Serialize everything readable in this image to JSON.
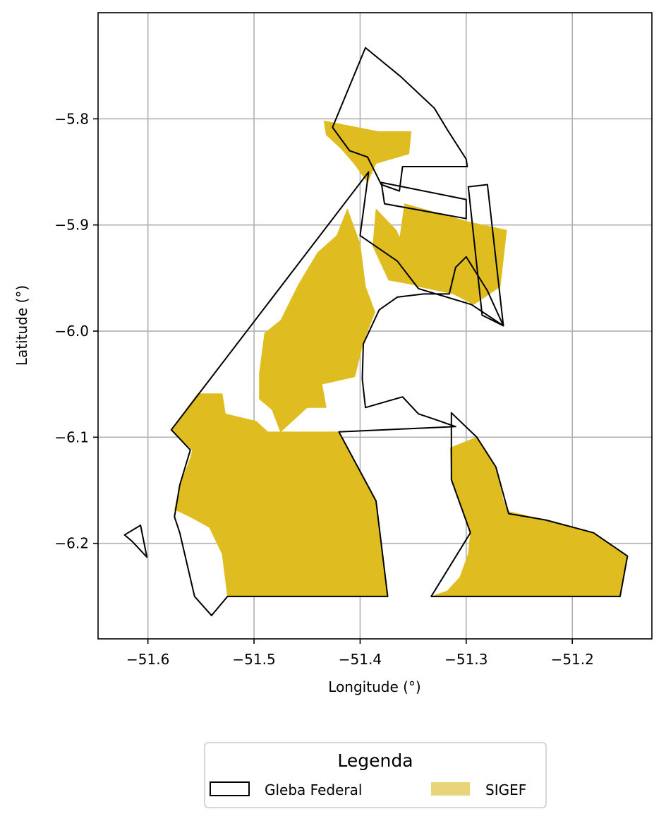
{
  "chart_data": {
    "type": "map",
    "xlabel": "Longitude (°)",
    "ylabel": "Latitude (°)",
    "xlim": [
      -51.647,
      -51.125
    ],
    "ylim": [
      -6.29,
      -5.7
    ],
    "grid": true,
    "x_ticks": [
      {
        "value": -51.6,
        "label": "−51.6"
      },
      {
        "value": -51.5,
        "label": "−51.5"
      },
      {
        "value": -51.4,
        "label": "−51.4"
      },
      {
        "value": -51.3,
        "label": "−51.3"
      },
      {
        "value": -51.2,
        "label": "−51.2"
      }
    ],
    "y_ticks": [
      {
        "value": -5.8,
        "label": "−5.8"
      },
      {
        "value": -5.9,
        "label": "−5.9"
      },
      {
        "value": -6.0,
        "label": "−6.0"
      },
      {
        "value": -6.1,
        "label": "−6.1"
      },
      {
        "value": -6.2,
        "label": "−6.2"
      }
    ],
    "legend": {
      "title": "Legenda",
      "placement": "bottom-center-outside",
      "entries": [
        {
          "label": "Gleba Federal",
          "style": "outline",
          "color": "#000000"
        },
        {
          "label": "SIGEF",
          "style": "fill",
          "color": "#e8d57a"
        }
      ]
    },
    "colors": {
      "sigef_fill": "#dfbd21",
      "gleba_edge": "#000000",
      "grid": "#b0b0b0"
    },
    "layers": [
      {
        "name": "SIGEF",
        "polygons": [
          [
            [
              -51.434,
              -5.802
            ],
            [
              -51.383,
              -5.812
            ],
            [
              -51.352,
              -5.812
            ],
            [
              -51.354,
              -5.833
            ],
            [
              -51.385,
              -5.842
            ],
            [
              -51.393,
              -5.86
            ],
            [
              -51.405,
              -5.843
            ],
            [
              -51.418,
              -5.828
            ],
            [
              -51.432,
              -5.815
            ]
          ],
          [
            [
              -51.358,
              -5.88
            ],
            [
              -51.298,
              -5.897
            ],
            [
              -51.262,
              -5.905
            ],
            [
              -51.268,
              -5.958
            ],
            [
              -51.293,
              -5.975
            ],
            [
              -51.312,
              -5.965
            ],
            [
              -51.345,
              -5.958
            ],
            [
              -51.368,
              -5.95
            ]
          ],
          [
            [
              -51.373,
              -5.952
            ],
            [
              -51.34,
              -5.958
            ],
            [
              -51.366,
              -5.905
            ],
            [
              -51.385,
              -5.885
            ],
            [
              -51.388,
              -5.92
            ]
          ],
          [
            [
              -51.475,
              -6.095
            ],
            [
              -51.45,
              -6.072
            ],
            [
              -51.432,
              -6.072
            ],
            [
              -51.436,
              -6.05
            ],
            [
              -51.405,
              -6.043
            ],
            [
              -51.397,
              -6.01
            ],
            [
              -51.386,
              -5.982
            ],
            [
              -51.395,
              -5.958
            ],
            [
              -51.4,
              -5.918
            ],
            [
              -51.412,
              -5.885
            ],
            [
              -51.422,
              -5.91
            ],
            [
              -51.44,
              -5.926
            ],
            [
              -51.458,
              -5.956
            ],
            [
              -51.475,
              -5.99
            ],
            [
              -51.49,
              -6.002
            ],
            [
              -51.495,
              -6.04
            ],
            [
              -51.495,
              -6.064
            ],
            [
              -51.483,
              -6.074
            ]
          ],
          [
            [
              -51.578,
              -6.093
            ],
            [
              -51.553,
              -6.059
            ],
            [
              -51.53,
              -6.059
            ],
            [
              -51.527,
              -6.078
            ],
            [
              -51.498,
              -6.085
            ],
            [
              -51.487,
              -6.095
            ],
            [
              -51.42,
              -6.095
            ],
            [
              -51.385,
              -6.16
            ],
            [
              -51.374,
              -6.25
            ],
            [
              -51.405,
              -6.25
            ],
            [
              -51.485,
              -6.25
            ],
            [
              -51.525,
              -6.25
            ],
            [
              -51.53,
              -6.21
            ],
            [
              -51.542,
              -6.185
            ],
            [
              -51.56,
              -6.175
            ],
            [
              -51.575,
              -6.168
            ],
            [
              -51.568,
              -6.14
            ],
            [
              -51.56,
              -6.12
            ],
            [
              -51.558,
              -6.112
            ]
          ],
          [
            [
              -51.315,
              -6.11
            ],
            [
              -51.29,
              -6.1
            ],
            [
              -51.272,
              -6.128
            ],
            [
              -51.265,
              -6.16
            ],
            [
              -51.26,
              -6.17
            ],
            [
              -51.234,
              -6.176
            ],
            [
              -51.225,
              -6.178
            ],
            [
              -51.195,
              -6.187
            ],
            [
              -51.18,
              -6.19
            ],
            [
              -51.16,
              -6.205
            ],
            [
              -51.148,
              -6.212
            ],
            [
              -51.152,
              -6.235
            ],
            [
              -51.155,
              -6.25
            ],
            [
              -51.21,
              -6.25
            ],
            [
              -51.265,
              -6.25
            ],
            [
              -51.333,
              -6.25
            ],
            [
              -51.318,
              -6.245
            ],
            [
              -51.306,
              -6.232
            ],
            [
              -51.298,
              -6.21
            ],
            [
              -51.296,
              -6.19
            ],
            [
              -51.305,
              -6.165
            ],
            [
              -51.314,
              -6.14
            ]
          ]
        ]
      },
      {
        "name": "Gleba Federal",
        "polygons": [
          [
            [
              -51.578,
              -6.093
            ],
            [
              -51.392,
              -5.85
            ],
            [
              -51.4,
              -5.91
            ],
            [
              -51.365,
              -5.934
            ],
            [
              -51.345,
              -5.96
            ],
            [
              -51.295,
              -5.975
            ],
            [
              -51.265,
              -5.995
            ],
            [
              -51.28,
              -5.962
            ],
            [
              -51.3,
              -5.93
            ],
            [
              -51.31,
              -5.94
            ],
            [
              -51.316,
              -5.965
            ],
            [
              -51.34,
              -5.965
            ],
            [
              -51.365,
              -5.968
            ],
            [
              -51.382,
              -5.98
            ],
            [
              -51.397,
              -6.012
            ],
            [
              -51.398,
              -6.045
            ],
            [
              -51.395,
              -6.072
            ],
            [
              -51.36,
              -6.062
            ],
            [
              -51.345,
              -6.078
            ],
            [
              -51.33,
              -6.083
            ],
            [
              -51.31,
              -6.09
            ],
            [
              -51.42,
              -6.095
            ],
            [
              -51.385,
              -6.16
            ],
            [
              -51.374,
              -6.25
            ],
            [
              -51.485,
              -6.25
            ],
            [
              -51.525,
              -6.25
            ],
            [
              -51.54,
              -6.268
            ],
            [
              -51.556,
              -6.25
            ],
            [
              -51.57,
              -6.19
            ],
            [
              -51.575,
              -6.175
            ],
            [
              -51.57,
              -6.145
            ],
            [
              -51.56,
              -6.112
            ]
          ],
          [
            [
              -51.395,
              -5.733
            ],
            [
              -51.362,
              -5.76
            ],
            [
              -51.33,
              -5.79
            ],
            [
              -51.318,
              -5.81
            ],
            [
              -51.3,
              -5.838
            ],
            [
              -51.299,
              -5.845
            ],
            [
              -51.36,
              -5.845
            ],
            [
              -51.363,
              -5.868
            ],
            [
              -51.38,
              -5.862
            ],
            [
              -51.393,
              -5.836
            ],
            [
              -51.41,
              -5.83
            ],
            [
              -51.426,
              -5.808
            ]
          ],
          [
            [
              -51.38,
              -5.86
            ],
            [
              -51.3,
              -5.876
            ],
            [
              -51.3,
              -5.894
            ],
            [
              -51.377,
              -5.88
            ]
          ],
          [
            [
              -51.298,
              -5.864
            ],
            [
              -51.28,
              -5.862
            ],
            [
              -51.265,
              -5.995
            ],
            [
              -51.285,
              -5.985
            ]
          ],
          [
            [
              -51.314,
              -6.077
            ],
            [
              -51.29,
              -6.1
            ],
            [
              -51.272,
              -6.128
            ],
            [
              -51.26,
              -6.172
            ],
            [
              -51.225,
              -6.178
            ],
            [
              -51.18,
              -6.19
            ],
            [
              -51.148,
              -6.212
            ],
            [
              -51.155,
              -6.25
            ],
            [
              -51.333,
              -6.25
            ],
            [
              -51.296,
              -6.19
            ],
            [
              -51.314,
              -6.14
            ]
          ],
          [
            [
              -51.622,
              -6.192
            ],
            [
              -51.607,
              -6.183
            ],
            [
              -51.601,
              -6.213
            ],
            [
              -51.615,
              -6.198
            ]
          ]
        ]
      }
    ]
  }
}
